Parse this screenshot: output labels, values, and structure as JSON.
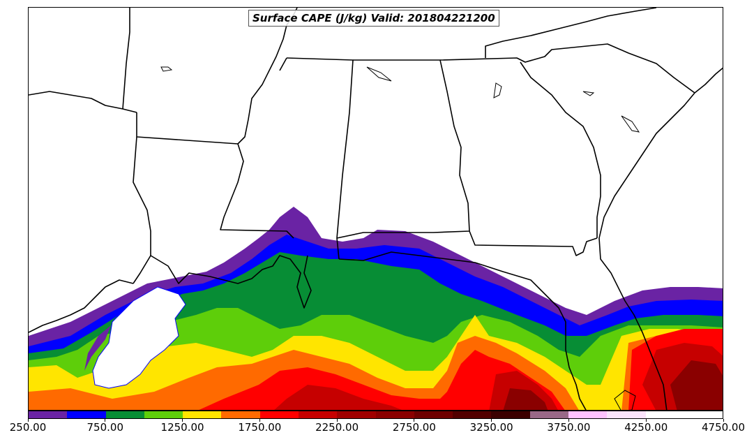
{
  "title": "Surface CAPE (J/kg) Valid: 201804221200",
  "colorbar": {
    "min": 250,
    "max": 4750,
    "step": 250,
    "colors": [
      "#6a23a4",
      "#0000ff",
      "#078d35",
      "#5ece0a",
      "#ffe500",
      "#ff6a00",
      "#ff0000",
      "#c60000",
      "#a00000",
      "#8a0000",
      "#6e0000",
      "#520000",
      "#3b0000",
      "#986887",
      "#ffc2ff",
      "#fbe3fb",
      "#ffffff",
      "#ffffff"
    ],
    "tick_labels": [
      "250.00",
      "750.00",
      "1250.00",
      "1750.00",
      "2250.00",
      "2750.00",
      "3250.00",
      "3750.00",
      "4250.00",
      "4750.00"
    ]
  }
}
